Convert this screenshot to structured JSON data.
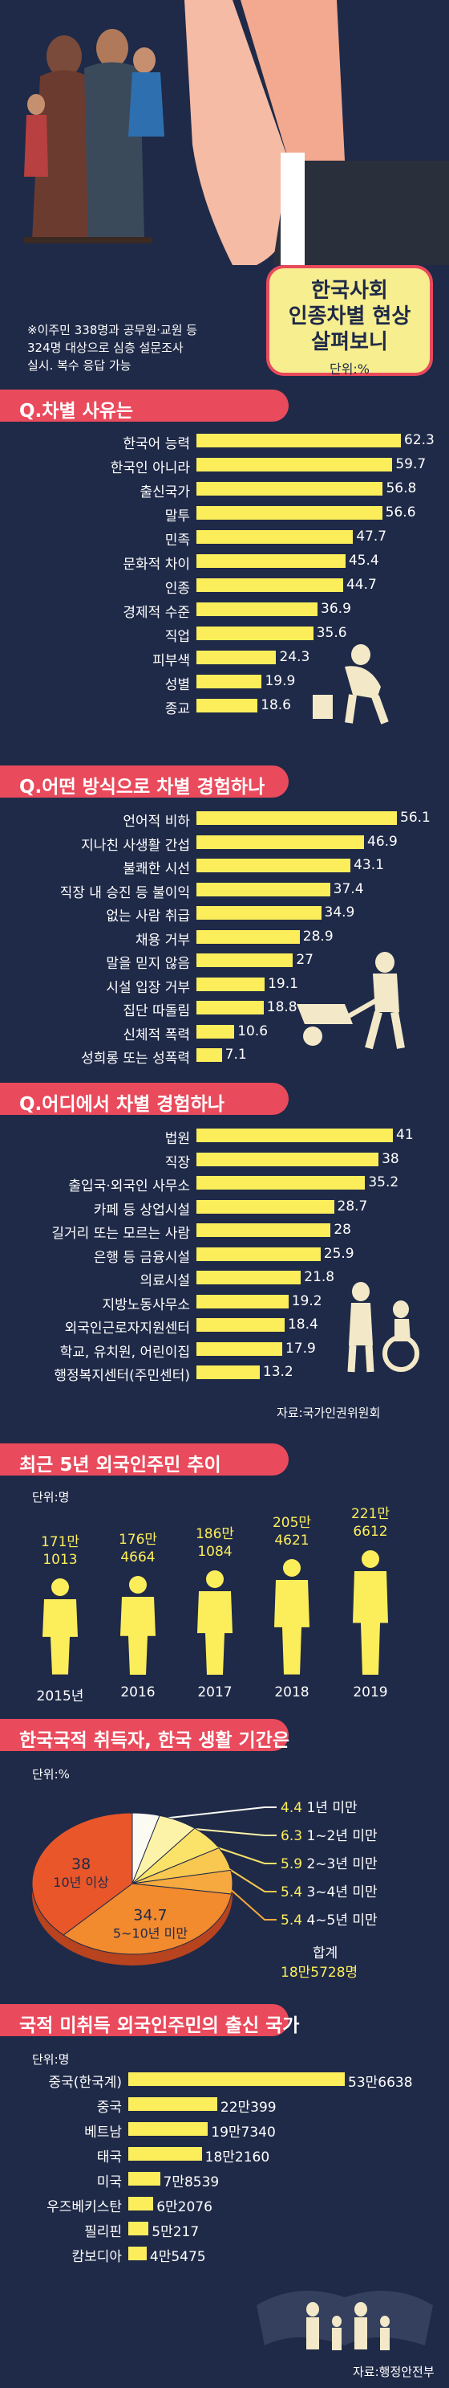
{
  "header": {
    "title": "한국사회\n인종차별 현상\n살펴보니",
    "unit": "단위:%",
    "note": "※이주민 338명과 공무원·교원 등\n324명 대상으로 심층 설문조사\n실시. 복수 응답 가능"
  },
  "sections": {
    "s1": "Q.차별 사유는",
    "s2": "Q.어떤 방식으로 차별 경험하나",
    "s3": "Q.어디에서 차별 경험하나",
    "s4": "최근 5년 외국인주민 추이",
    "s5": "한국국적 취득자, 한국 생활 기간은",
    "s6": "국적 미취득 외국인주민의 출신 국가"
  },
  "sources": {
    "s3": "자료:국가인권위원회",
    "s6": "자료:행정안전부"
  },
  "chart_data": [
    {
      "type": "bar",
      "title": "Q.차별 사유는",
      "categories": [
        "한국어 능력",
        "한국인 아니라",
        "출신국가",
        "말투",
        "민족",
        "문화적 차이",
        "인종",
        "경제적 수준",
        "직업",
        "피부색",
        "성별",
        "종교"
      ],
      "values": [
        62.3,
        59.7,
        56.8,
        56.6,
        47.7,
        45.4,
        44.7,
        36.9,
        35.6,
        24.3,
        19.9,
        18.6
      ],
      "value_labels": [
        "62.3",
        "59.7",
        "56.8",
        "56.6",
        "47.7",
        "45.4",
        "44.7",
        "36.9",
        "35.6",
        "24.3",
        "19.9",
        "18.6"
      ],
      "xlim": [
        0,
        65
      ]
    },
    {
      "type": "bar",
      "title": "Q.어떤 방식으로 차별 경험하나",
      "categories": [
        "언어적 비하",
        "지나친 사생활 간섭",
        "불쾌한 시선",
        "직장 내 승진 등 불이익",
        "없는 사람 취급",
        "채용 거부",
        "말을 믿지 않음",
        "시설 입장 거부",
        "집단 따돌림",
        "신체적 폭력",
        "성희롱 또는 성폭력"
      ],
      "values": [
        56.1,
        46.9,
        43.1,
        37.4,
        34.9,
        28.9,
        27,
        19.1,
        18.8,
        10.6,
        7.1
      ],
      "value_labels": [
        "56.1",
        "46.9",
        "43.1",
        "37.4",
        "34.9",
        "28.9",
        "27",
        "19.1",
        "18.8",
        "10.6",
        "7.1"
      ],
      "xlim": [
        0,
        65
      ]
    },
    {
      "type": "bar",
      "title": "Q.어디에서 차별 경험하나",
      "categories": [
        "법원",
        "직장",
        "출입국·외국인 사무소",
        "카페 등 상업시설",
        "길거리 또는 모르는 사람",
        "은행 등 금융시설",
        "의료시설",
        "지방노동사무소",
        "외국인근로자지원센터",
        "학교, 유치원, 어린이집",
        "행정복지센터(주민센터)"
      ],
      "values": [
        41,
        38,
        35.2,
        28.7,
        28,
        25.9,
        21.8,
        19.2,
        18.4,
        17.9,
        13.2
      ],
      "value_labels": [
        "41",
        "38",
        "35.2",
        "28.7",
        "28",
        "25.9",
        "21.8",
        "19.2",
        "18.4",
        "17.9",
        "13.2"
      ],
      "xlim": [
        0,
        45
      ]
    },
    {
      "type": "bar",
      "title": "최근 5년 외국인주민 추이",
      "unit": "단위:명",
      "categories": [
        "2015년",
        "2016",
        "2017",
        "2018",
        "2019"
      ],
      "values": [
        1711013,
        1764664,
        1861084,
        2054621,
        2216612
      ],
      "value_labels": [
        [
          "171만",
          "1013"
        ],
        [
          "176만",
          "4664"
        ],
        [
          "186만",
          "1084"
        ],
        [
          "205만",
          "4621"
        ],
        [
          "221만",
          "6612"
        ]
      ]
    },
    {
      "type": "pie",
      "title": "한국국적 취득자, 한국 생활 기간은",
      "unit": "단위:%",
      "slices": [
        {
          "value": 4.4,
          "label": "1년 미만",
          "color": "#fbfbf4"
        },
        {
          "value": 6.3,
          "label": "1~2년 미만",
          "color": "#fdf3a8"
        },
        {
          "value": 5.9,
          "label": "2~3년 미만",
          "color": "#fbe36a"
        },
        {
          "value": 5.4,
          "label": "3~4년 미만",
          "color": "#f9c850"
        },
        {
          "value": 5.4,
          "label": "4~5년 미만",
          "color": "#f5a93e"
        },
        {
          "value": 34.7,
          "label": "5~10년 미만",
          "color": "#f28a2e"
        },
        {
          "value": 38,
          "label": "10년 이상",
          "color": "#e8562a"
        }
      ],
      "total_label": "합계",
      "total_value": "18만5728명"
    },
    {
      "type": "bar",
      "title": "국적 미취득 외국인주민의 출신 국가",
      "unit": "단위:명",
      "categories": [
        "중국(한국계)",
        "중국",
        "베트남",
        "태국",
        "미국",
        "우즈베키스탄",
        "필리핀",
        "캄보디아"
      ],
      "values": [
        536638,
        220399,
        197340,
        182160,
        78539,
        62076,
        50217,
        45475
      ],
      "value_labels": [
        "53만6638",
        "22만399",
        "19만7340",
        "18만2160",
        "7만8539",
        "6만2076",
        "5만217",
        "4만5475"
      ]
    }
  ]
}
